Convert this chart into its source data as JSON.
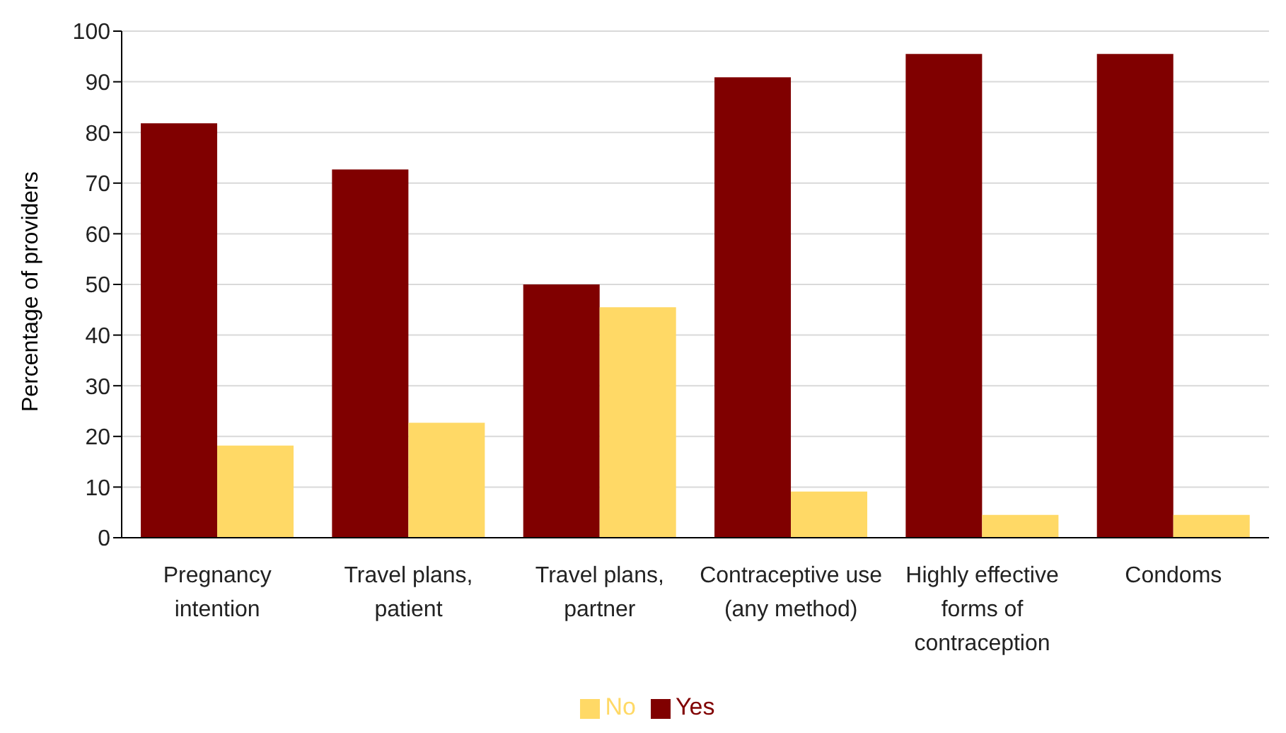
{
  "chart_data": {
    "type": "bar",
    "ylabel": "Percentage of providers",
    "categories": [
      "Pregnancy intention",
      "Travel plans, patient",
      "Travel plans, partner",
      "Contraceptive use (any method)",
      "Highly effective forms of contraception",
      "Condoms"
    ],
    "series": [
      {
        "name": "Yes",
        "color": "#800000",
        "values": [
          81.8,
          72.7,
          50,
          90.9,
          95.5,
          95.5
        ]
      },
      {
        "name": "No",
        "color": "#ffd966",
        "values": [
          18.2,
          22.7,
          45.5,
          9.1,
          4.5,
          4.5
        ]
      }
    ],
    "ylim": [
      0,
      100
    ],
    "yticks": [
      0,
      10,
      20,
      30,
      40,
      50,
      60,
      70,
      80,
      90,
      100
    ],
    "grid": "y",
    "legend": "bottom"
  }
}
